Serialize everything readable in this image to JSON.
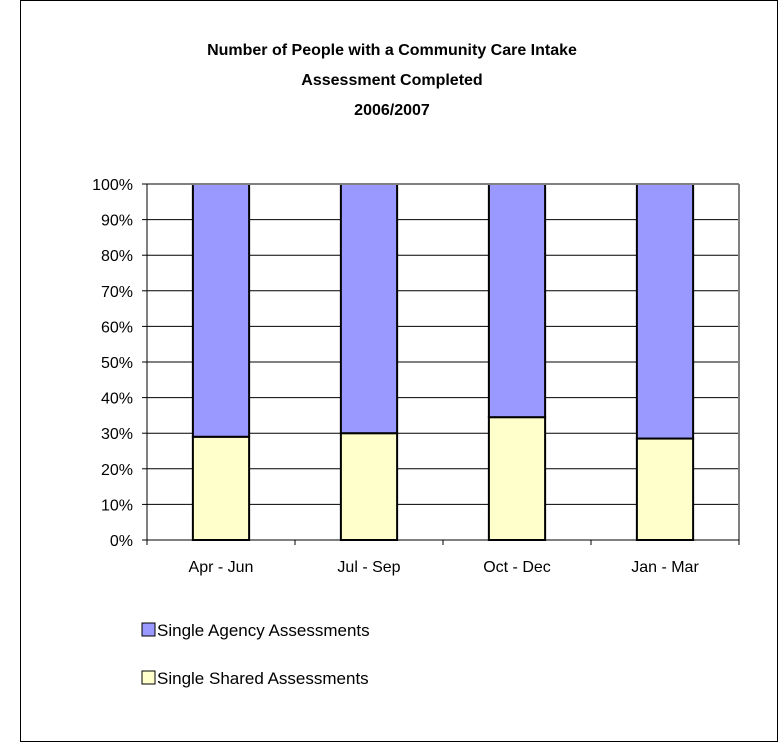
{
  "chart_data": {
    "type": "bar",
    "stacked": true,
    "percent": true,
    "title_lines": [
      "Number of People with a Community Care Intake",
      "Assessment Completed",
      "2006/2007"
    ],
    "categories": [
      "Apr - Jun",
      "Jul - Sep",
      "Oct - Dec",
      "Jan - Mar"
    ],
    "yticks": [
      "0%",
      "10%",
      "20%",
      "30%",
      "40%",
      "50%",
      "60%",
      "70%",
      "80%",
      "90%",
      "100%"
    ],
    "ylim": [
      0,
      100
    ],
    "grid": true,
    "legend_position": "bottom-left",
    "series": [
      {
        "name": "Single Shared Assessments",
        "values": [
          29,
          30,
          34.5,
          28.5
        ],
        "color": "#FFFFCC"
      },
      {
        "name": "Single Agency Assessments",
        "values": [
          71,
          70,
          65.5,
          71.5
        ],
        "color": "#9999FF"
      }
    ],
    "legend": [
      "Single Agency Assessments",
      "Single Shared Assessments"
    ]
  }
}
